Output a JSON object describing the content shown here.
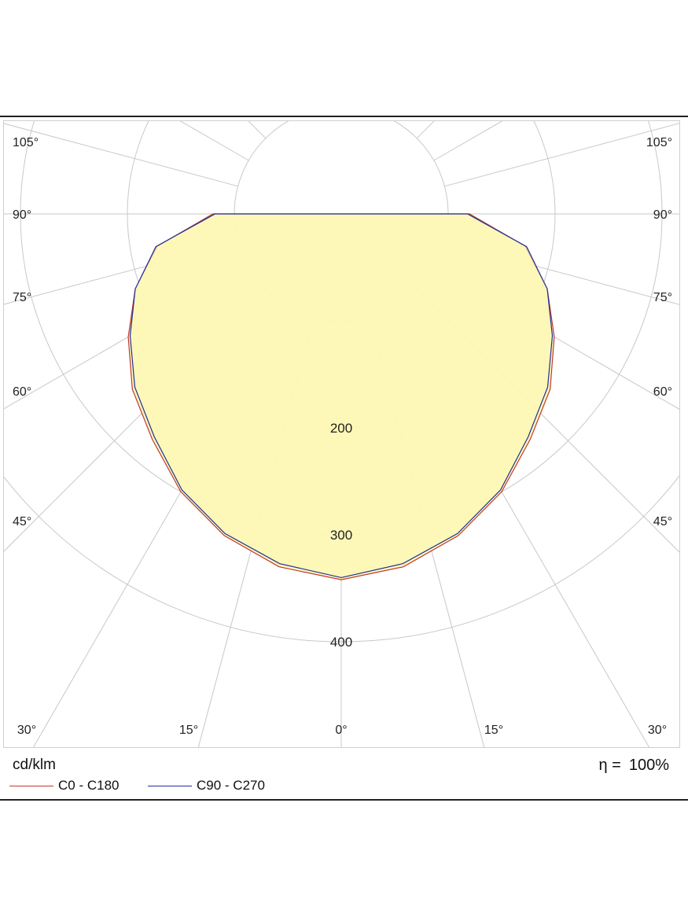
{
  "chart_data": {
    "type": "polar",
    "unit_label": "cd/klm",
    "efficiency": {
      "symbol": "η =",
      "value": "100%"
    },
    "radial_ticks": [
      100,
      200,
      300,
      400
    ],
    "radial_tick_labels": [
      "200",
      "300",
      "400"
    ],
    "angle_tick_labels": [
      {
        "angle": 105,
        "label": "105°"
      },
      {
        "angle": 90,
        "label": "90°"
      },
      {
        "angle": 75,
        "label": "75°"
      },
      {
        "angle": 60,
        "label": "60°"
      },
      {
        "angle": 45,
        "label": "45°"
      },
      {
        "angle": 30,
        "label": "30°"
      },
      {
        "angle": 15,
        "label": "15°"
      },
      {
        "angle": 0,
        "label": "0°"
      }
    ],
    "series": [
      {
        "name": "C0 - C180",
        "color": "#c0392b",
        "angles": [
          0,
          10,
          20,
          30,
          40,
          50,
          60,
          70,
          80,
          90
        ],
        "values": [
          342,
          335,
          320,
          300,
          275,
          255,
          230,
          205,
          175,
          120
        ]
      },
      {
        "name": "C90 - C270",
        "color": "#1f2f9a",
        "angles": [
          0,
          10,
          20,
          30,
          40,
          50,
          60,
          70,
          80,
          90
        ],
        "values": [
          340,
          332,
          318,
          298,
          272,
          252,
          228,
          205,
          176,
          118
        ]
      }
    ],
    "fill_color": "#fdf6b5",
    "grid": true
  }
}
